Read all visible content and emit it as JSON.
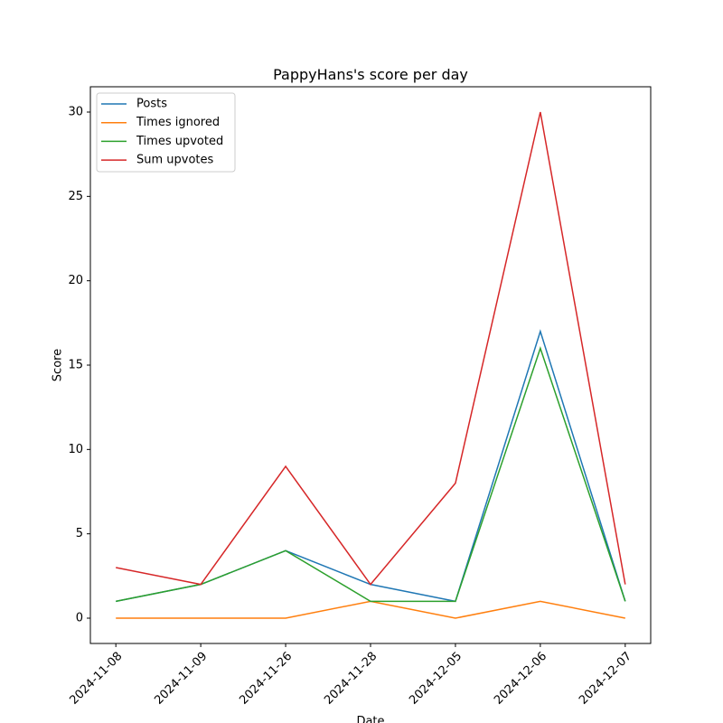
{
  "chart_data": {
    "type": "line",
    "title": "PappyHans's score per day",
    "x_label": "Date",
    "y_label": "Score",
    "categories": [
      "2024-11-08",
      "2024-11-09",
      "2024-11-26",
      "2024-11-28",
      "2024-12-05",
      "2024-12-06",
      "2024-12-07"
    ],
    "series": [
      {
        "name": "Posts",
        "color": "#1f77b4",
        "values": [
          1,
          2,
          4,
          2,
          1,
          17,
          1
        ]
      },
      {
        "name": "Times ignored",
        "color": "#ff7f0e",
        "values": [
          0,
          0,
          0,
          1,
          0,
          1,
          0
        ]
      },
      {
        "name": "Times upvoted",
        "color": "#2ca02c",
        "values": [
          1,
          2,
          4,
          1,
          1,
          16,
          1
        ]
      },
      {
        "name": "Sum upvotes",
        "color": "#d62728",
        "values": [
          3,
          2,
          9,
          2,
          8,
          30,
          2
        ]
      }
    ],
    "ylim": [
      -1.5,
      31.5
    ],
    "yticks": [
      0,
      5,
      10,
      15,
      20,
      25,
      30
    ],
    "grid": false,
    "legend": "upper-left"
  }
}
